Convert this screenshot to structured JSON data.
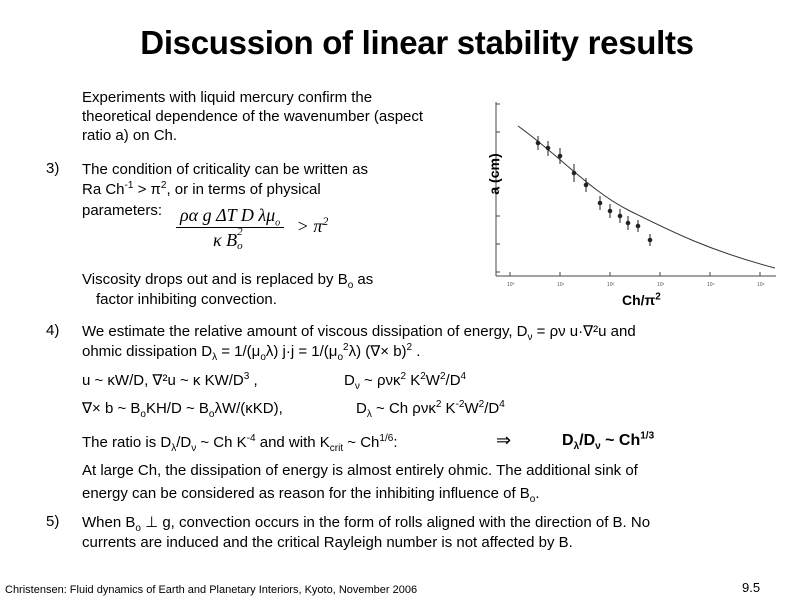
{
  "title": "Discussion of linear stability results",
  "intro": "Experiments with liquid mercury confirm the theoretical dependence of the wavenumber (aspect ratio a) on Ch.",
  "items": {
    "n3": "3)",
    "p3a": "The condition of criticality can be written as",
    "p3b_pre": "Ra Ch",
    "p3b_sup": "-1",
    "p3b_mid": " > π",
    "p3b_sup2": "2",
    "p3b_post": ", or in terms of physical",
    "p3c": "parameters:",
    "formula_num": "ρα g ΔT D λμ",
    "formula_num_sub": "o",
    "formula_den": "κ B",
    "formula_den_sup": "2",
    "formula_den_sub": "o",
    "formula_rhs": ">  π",
    "formula_rhs_sup": "2",
    "visc_a": "Viscosity drops out and is replaced by B",
    "visc_sub": "o",
    "visc_b": " as",
    "visc_c": "factor inhibiting convection.",
    "n4": "4)",
    "p4a": "We estimate the relative amount of viscous dissipation of energy, D",
    "p4a_sub": "ν",
    "p4a_post": " = ρν u·∇²u  and",
    "p4b": "ohmic dissipation  D",
    "p4b_sub": "λ",
    "p4b_post": " = 1/(μ",
    "p4b_sub2": "o",
    "p4b_post2": "λ) j·j = 1/(μ",
    "p4b_sub3": "o",
    "p4b_sup3": "2",
    "p4b_post3": "λ) (∇× b)",
    "p4b_sup4": "2",
    "p4b_end": " .",
    "eq1a": "u ~ κW/D, ∇²u ~ κ KW/D",
    "eq1a_sup": "3",
    "eq1a_post": " ,",
    "eq1b": "D",
    "eq1b_sub": "ν",
    "eq1b_post": " ~ ρνκ",
    "eq1b_sup": "2",
    "eq1b_post2": " K",
    "eq1b_sup2": "2",
    "eq1b_post3": "W",
    "eq1b_sup3": "2",
    "eq1b_post4": "/D",
    "eq1b_sup4": "4",
    "eq2a": "∇× b ~ B",
    "eq2a_sub": "o",
    "eq2a_post": "KH/D ~ B",
    "eq2a_sub2": "o",
    "eq2a_post2": "λW/(κKD),",
    "eq2b": "D",
    "eq2b_sub": "λ",
    "eq2b_post": " ~ Ch ρνκ",
    "eq2b_sup": "2",
    "eq2b_post2": " K",
    "eq2b_sup2": "-2",
    "eq2b_post3": "W",
    "eq2b_sup3": "2",
    "eq2b_post4": "/D",
    "eq2b_sup4": "4",
    "ratio_a": "The ratio is D",
    "ratio_sub": "λ",
    "ratio_b": "/D",
    "ratio_sub2": "ν",
    "ratio_c": "  ~ Ch K",
    "ratio_sup": "-4",
    "ratio_d": " and with K",
    "ratio_sub3": "crit",
    "ratio_e": " ~ Ch",
    "ratio_sup2": "1/6",
    "ratio_f": ":",
    "arrow": "⇒",
    "result_a": "D",
    "result_sub": "λ",
    "result_b": "/D",
    "result_sub2": "ν",
    "result_c": "  ~ Ch",
    "result_sup": "1/3",
    "large1": "At large Ch, the dissipation of energy is almost entirely ohmic. The additional sink of",
    "large2_a": "energy can be considered as reason for the inhibiting influence of B",
    "large2_sub": "o",
    "large2_b": ".",
    "n5": "5)",
    "p5a": "When B",
    "p5a_sub": "o",
    "p5a_post": " ⊥ g, convection occurs in the form of rolls aligned with the direction of B. No",
    "p5b": "currents are induced and the critical Rayleigh number is not affected by B."
  },
  "plot": {
    "ylabel": "a (cm)",
    "xlabel_pre": "Ch/π",
    "xlabel_sup": "2"
  },
  "footer": "Christensen: Fluid dynamics of Earth and Planetary Interiors, Kyoto, November 2006",
  "page_number": "9.5"
}
